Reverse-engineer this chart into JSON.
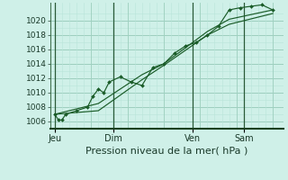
{
  "background_color": "#cff0e8",
  "plot_bg_color": "#cff0e8",
  "grid_major_color": "#9dcfbe",
  "grid_minor_color": "#b8e4d8",
  "line_color": "#1a5c28",
  "ylim": [
    1005.0,
    1022.5
  ],
  "yticks": [
    1006,
    1008,
    1010,
    1012,
    1014,
    1016,
    1018,
    1020
  ],
  "ylabel_fontsize": 6.5,
  "xlabel": "Pression niveau de la mer( hPa )",
  "xlabel_fontsize": 8.0,
  "day_labels": [
    "Jeu",
    "Dim",
    "Ven",
    "Sam"
  ],
  "day_positions": [
    0.0,
    0.267,
    0.633,
    0.867
  ],
  "xlim": [
    -0.02,
    1.05
  ],
  "series1_x": [
    0.0,
    0.017,
    0.033,
    0.05,
    0.1,
    0.15,
    0.175,
    0.2,
    0.225,
    0.25,
    0.3,
    0.35,
    0.4,
    0.45,
    0.5,
    0.55,
    0.6,
    0.65,
    0.7,
    0.75,
    0.8,
    0.85,
    0.9,
    0.95,
    1.0
  ],
  "series1_y": [
    1007.0,
    1006.2,
    1006.2,
    1007.0,
    1007.5,
    1008.0,
    1009.5,
    1010.5,
    1010.0,
    1011.5,
    1012.2,
    1011.5,
    1011.0,
    1013.5,
    1014.0,
    1015.5,
    1016.5,
    1017.0,
    1018.0,
    1019.2,
    1021.5,
    1021.8,
    1022.0,
    1022.2,
    1021.5
  ],
  "series2_x": [
    0.0,
    0.2,
    0.4,
    0.5,
    0.7,
    0.8,
    1.0
  ],
  "series2_y": [
    1007.0,
    1008.5,
    1012.5,
    1014.0,
    1018.5,
    1020.2,
    1021.5
  ],
  "series3_x": [
    0.0,
    0.2,
    0.4,
    0.5,
    0.7,
    0.8,
    1.0
  ],
  "series3_y": [
    1007.0,
    1007.5,
    1011.8,
    1013.8,
    1018.0,
    1019.5,
    1021.0
  ],
  "vline_color": "#2a5a38",
  "spine_color": "#3a6b48",
  "bottom_spine_color": "#1a4020"
}
